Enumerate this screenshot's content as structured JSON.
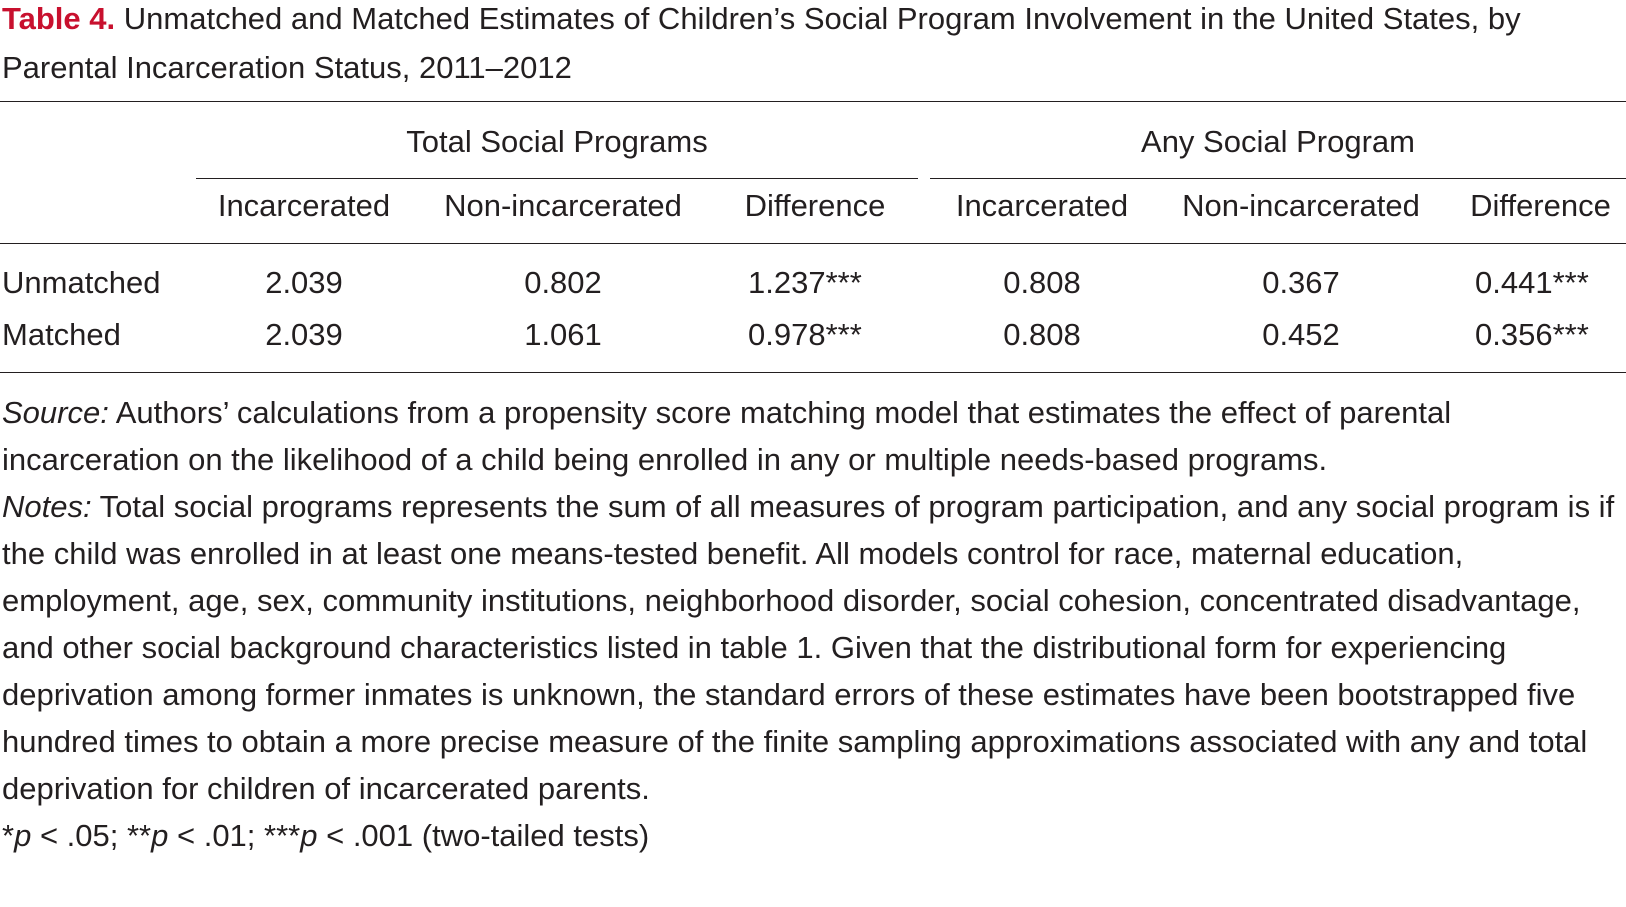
{
  "caption": {
    "label": "Table 4.",
    "title": "Unmatched and Matched Estimates of Children’s Social Program Involvement in the United States, by Parental Incarceration Status, 2011–2012"
  },
  "table": {
    "group_headers": [
      "Total Social Programs",
      "Any Social Program"
    ],
    "column_headers": [
      "Incarcerated",
      "Non-incarcerated",
      "Difference",
      "Incarcerated",
      "Non-incarcerated",
      "Difference"
    ],
    "rows": [
      {
        "label": "Unmatched",
        "values": [
          "2.039",
          "0.802",
          "1.237***",
          "0.808",
          "0.367",
          "0.441***"
        ]
      },
      {
        "label": "Matched",
        "values": [
          "2.039",
          "1.061",
          "0.978***",
          "0.808",
          "0.452",
          "0.356***"
        ]
      }
    ]
  },
  "notes": {
    "source_label": "Source:",
    "source_text": " Authors’ calculations from a propensity score matching model that estimates the effect of parental incarceration on the likelihood of a child being enrolled in any or multiple needs-based programs.",
    "notes_label": "Notes:",
    "notes_text": " Total social programs represents the sum of all measures of program participation, and any social program is if the child was enrolled in at least one means-tested benefit. All models control for race, maternal education, employment, age, sex, community institutions, neighborhood disorder, social cohesion, concentrated disadvantage, and other social background characteristics listed in table 1. Given that the distributional form for experiencing deprivation among former inmates is unknown, the standard errors of these estimates have been bootstrapped five hundred times to obtain a more precise measure of the finite sampling approximations associated with any and total deprivation for children of incarcerated parents.",
    "sig_1_stars": "*",
    "sig_1_p": "p",
    "sig_1_rest": " < .05; ",
    "sig_2_stars": "**",
    "sig_2_p": "p",
    "sig_2_rest": " < .01; ",
    "sig_3_stars": "***",
    "sig_3_p": "p",
    "sig_3_rest": " < .001 (two-tailed tests)"
  }
}
